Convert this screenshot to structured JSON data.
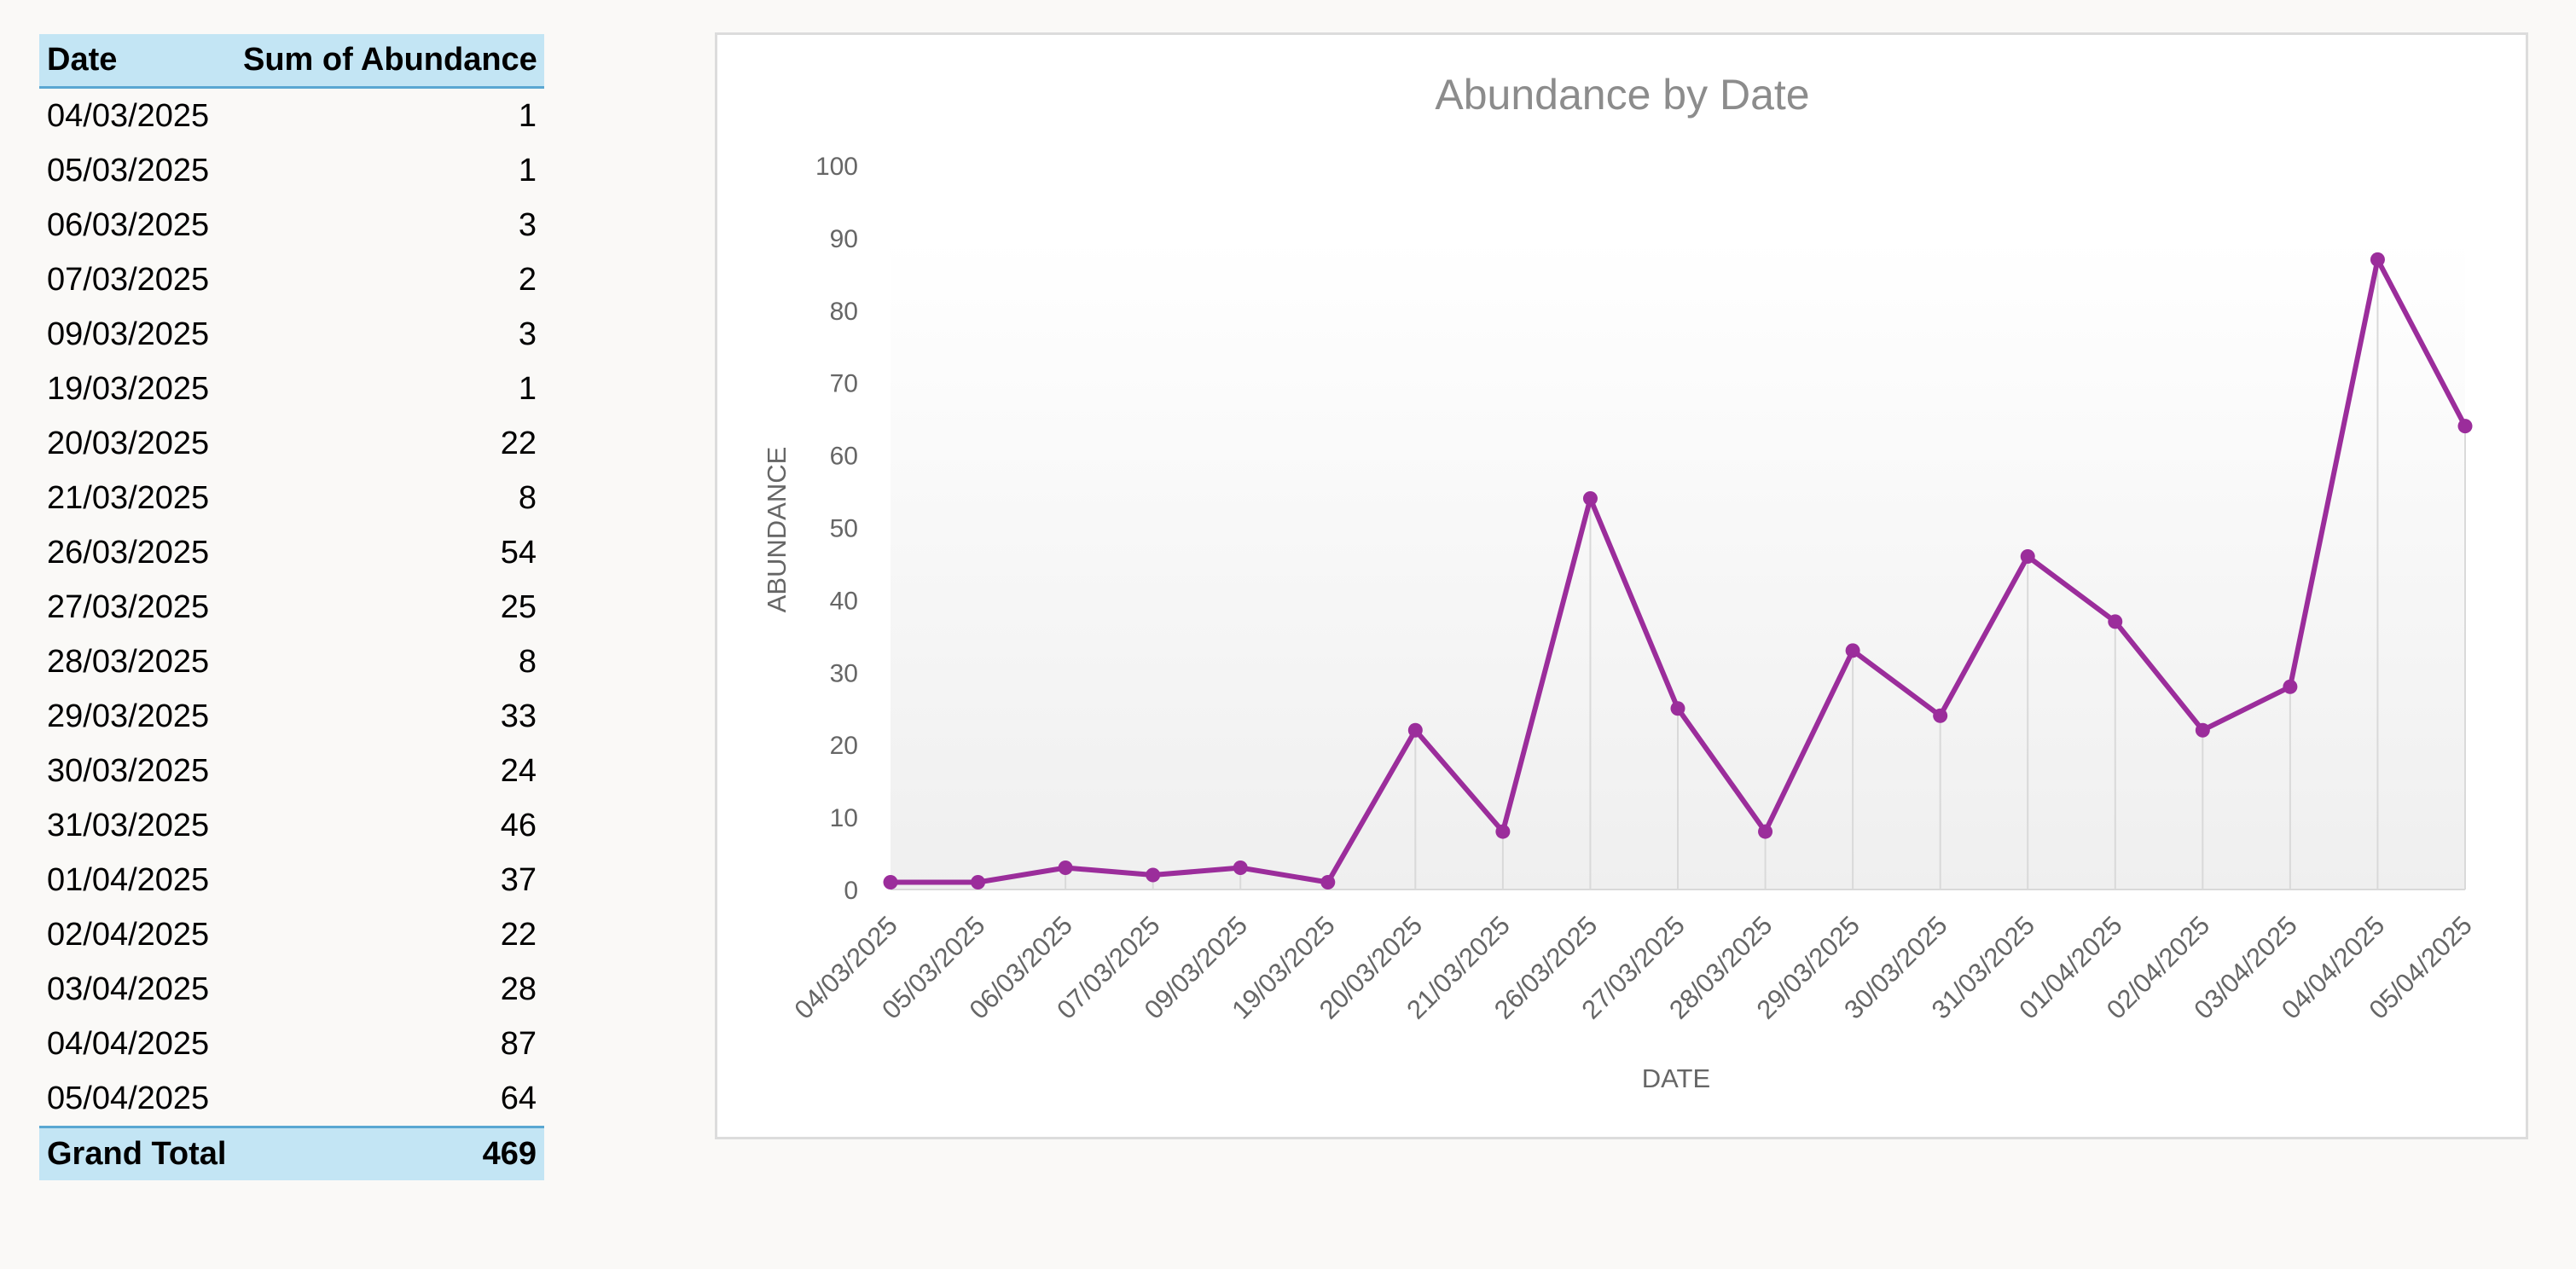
{
  "pivot": {
    "headers": {
      "date": "Date",
      "sum": "Sum of Abundance"
    },
    "rows": [
      {
        "date": "04/03/2025",
        "value": "1"
      },
      {
        "date": "05/03/2025",
        "value": "1"
      },
      {
        "date": "06/03/2025",
        "value": "3"
      },
      {
        "date": "07/03/2025",
        "value": "2"
      },
      {
        "date": "09/03/2025",
        "value": "3"
      },
      {
        "date": "19/03/2025",
        "value": "1"
      },
      {
        "date": "20/03/2025",
        "value": "22"
      },
      {
        "date": "21/03/2025",
        "value": "8"
      },
      {
        "date": "26/03/2025",
        "value": "54"
      },
      {
        "date": "27/03/2025",
        "value": "25"
      },
      {
        "date": "28/03/2025",
        "value": "8"
      },
      {
        "date": "29/03/2025",
        "value": "33"
      },
      {
        "date": "30/03/2025",
        "value": "24"
      },
      {
        "date": "31/03/2025",
        "value": "46"
      },
      {
        "date": "01/04/2025",
        "value": "37"
      },
      {
        "date": "02/04/2025",
        "value": "22"
      },
      {
        "date": "03/04/2025",
        "value": "28"
      },
      {
        "date": "04/04/2025",
        "value": "87"
      },
      {
        "date": "05/04/2025",
        "value": "64"
      }
    ],
    "total": {
      "label": "Grand Total",
      "value": "469"
    }
  },
  "chart_data": {
    "type": "line",
    "title": "Abundance by Date",
    "xlabel": "DATE",
    "ylabel": "ABUNDANCE",
    "categories": [
      "04/03/2025",
      "05/03/2025",
      "06/03/2025",
      "07/03/2025",
      "09/03/2025",
      "19/03/2025",
      "20/03/2025",
      "21/03/2025",
      "26/03/2025",
      "27/03/2025",
      "28/03/2025",
      "29/03/2025",
      "30/03/2025",
      "31/03/2025",
      "01/04/2025",
      "02/04/2025",
      "03/04/2025",
      "04/04/2025",
      "05/04/2025"
    ],
    "series": [
      {
        "values": [
          1,
          1,
          3,
          2,
          3,
          1,
          22,
          8,
          54,
          25,
          8,
          33,
          24,
          46,
          37,
          22,
          28,
          87,
          64
        ]
      }
    ],
    "ylim": [
      0,
      100
    ],
    "yticks": [
      0,
      10,
      20,
      30,
      40,
      50,
      60,
      70,
      80,
      90,
      100
    ],
    "grid": false,
    "drop_lines": true,
    "markers": true,
    "legend": "none",
    "colors": {
      "line": "#9b2d9b",
      "drop_line": "#d9d9d9",
      "plot_fill_top": "#ffffff",
      "plot_fill_bottom": "#efefef"
    }
  }
}
